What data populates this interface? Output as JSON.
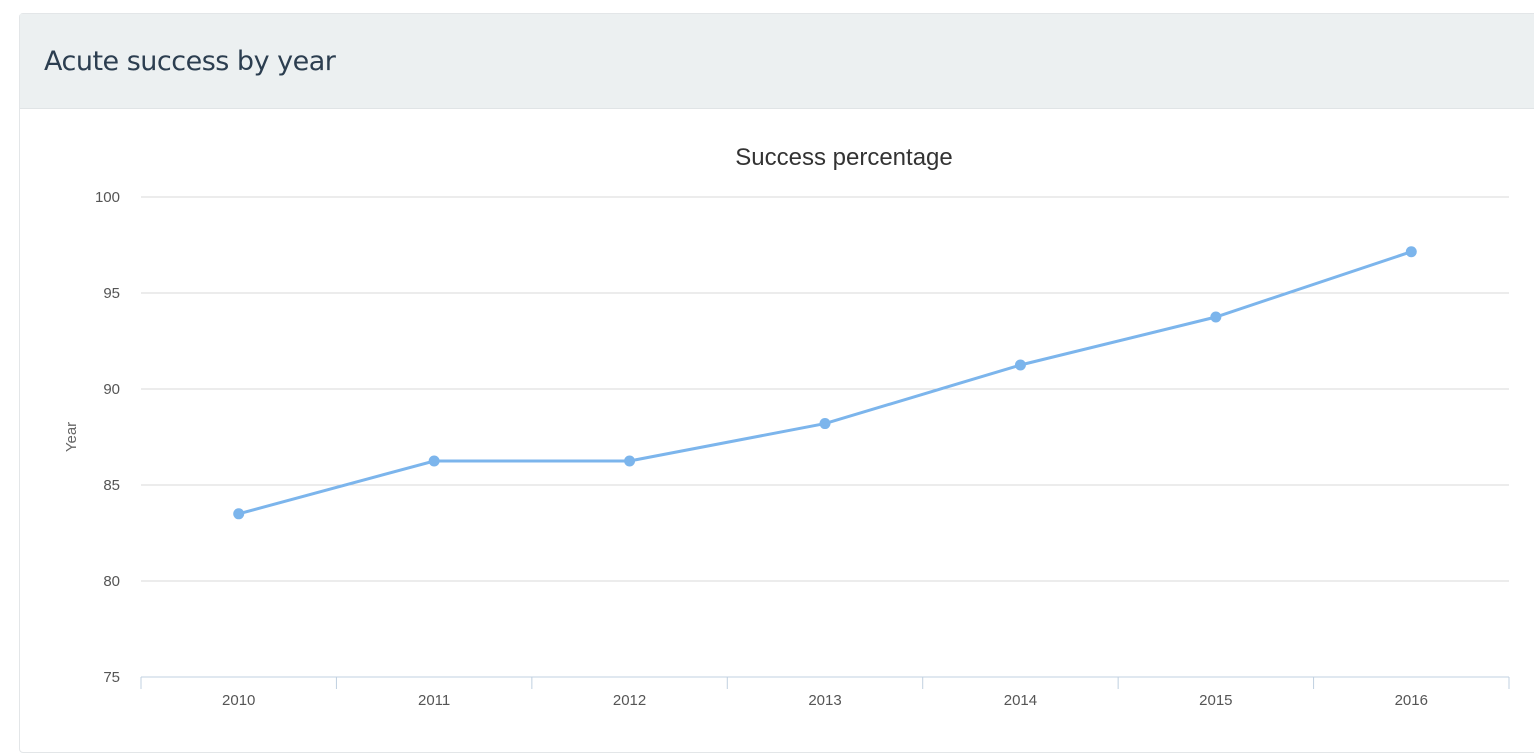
{
  "panel": {
    "title": "Acute success by year"
  },
  "chart_data": {
    "type": "line",
    "title": "Success percentage",
    "xlabel": "",
    "ylabel": "Year",
    "categories": [
      "2010",
      "2011",
      "2012",
      "2013",
      "2014",
      "2015",
      "2016"
    ],
    "series": [
      {
        "name": "Success percentage",
        "values": [
          83.5,
          86.25,
          86.25,
          88.2,
          91.25,
          93.75,
          97.15
        ],
        "color": "#7cb5ec"
      }
    ],
    "ylim": [
      75,
      100
    ],
    "yticks": [
      75,
      80,
      85,
      90,
      95,
      100
    ],
    "grid": true
  }
}
